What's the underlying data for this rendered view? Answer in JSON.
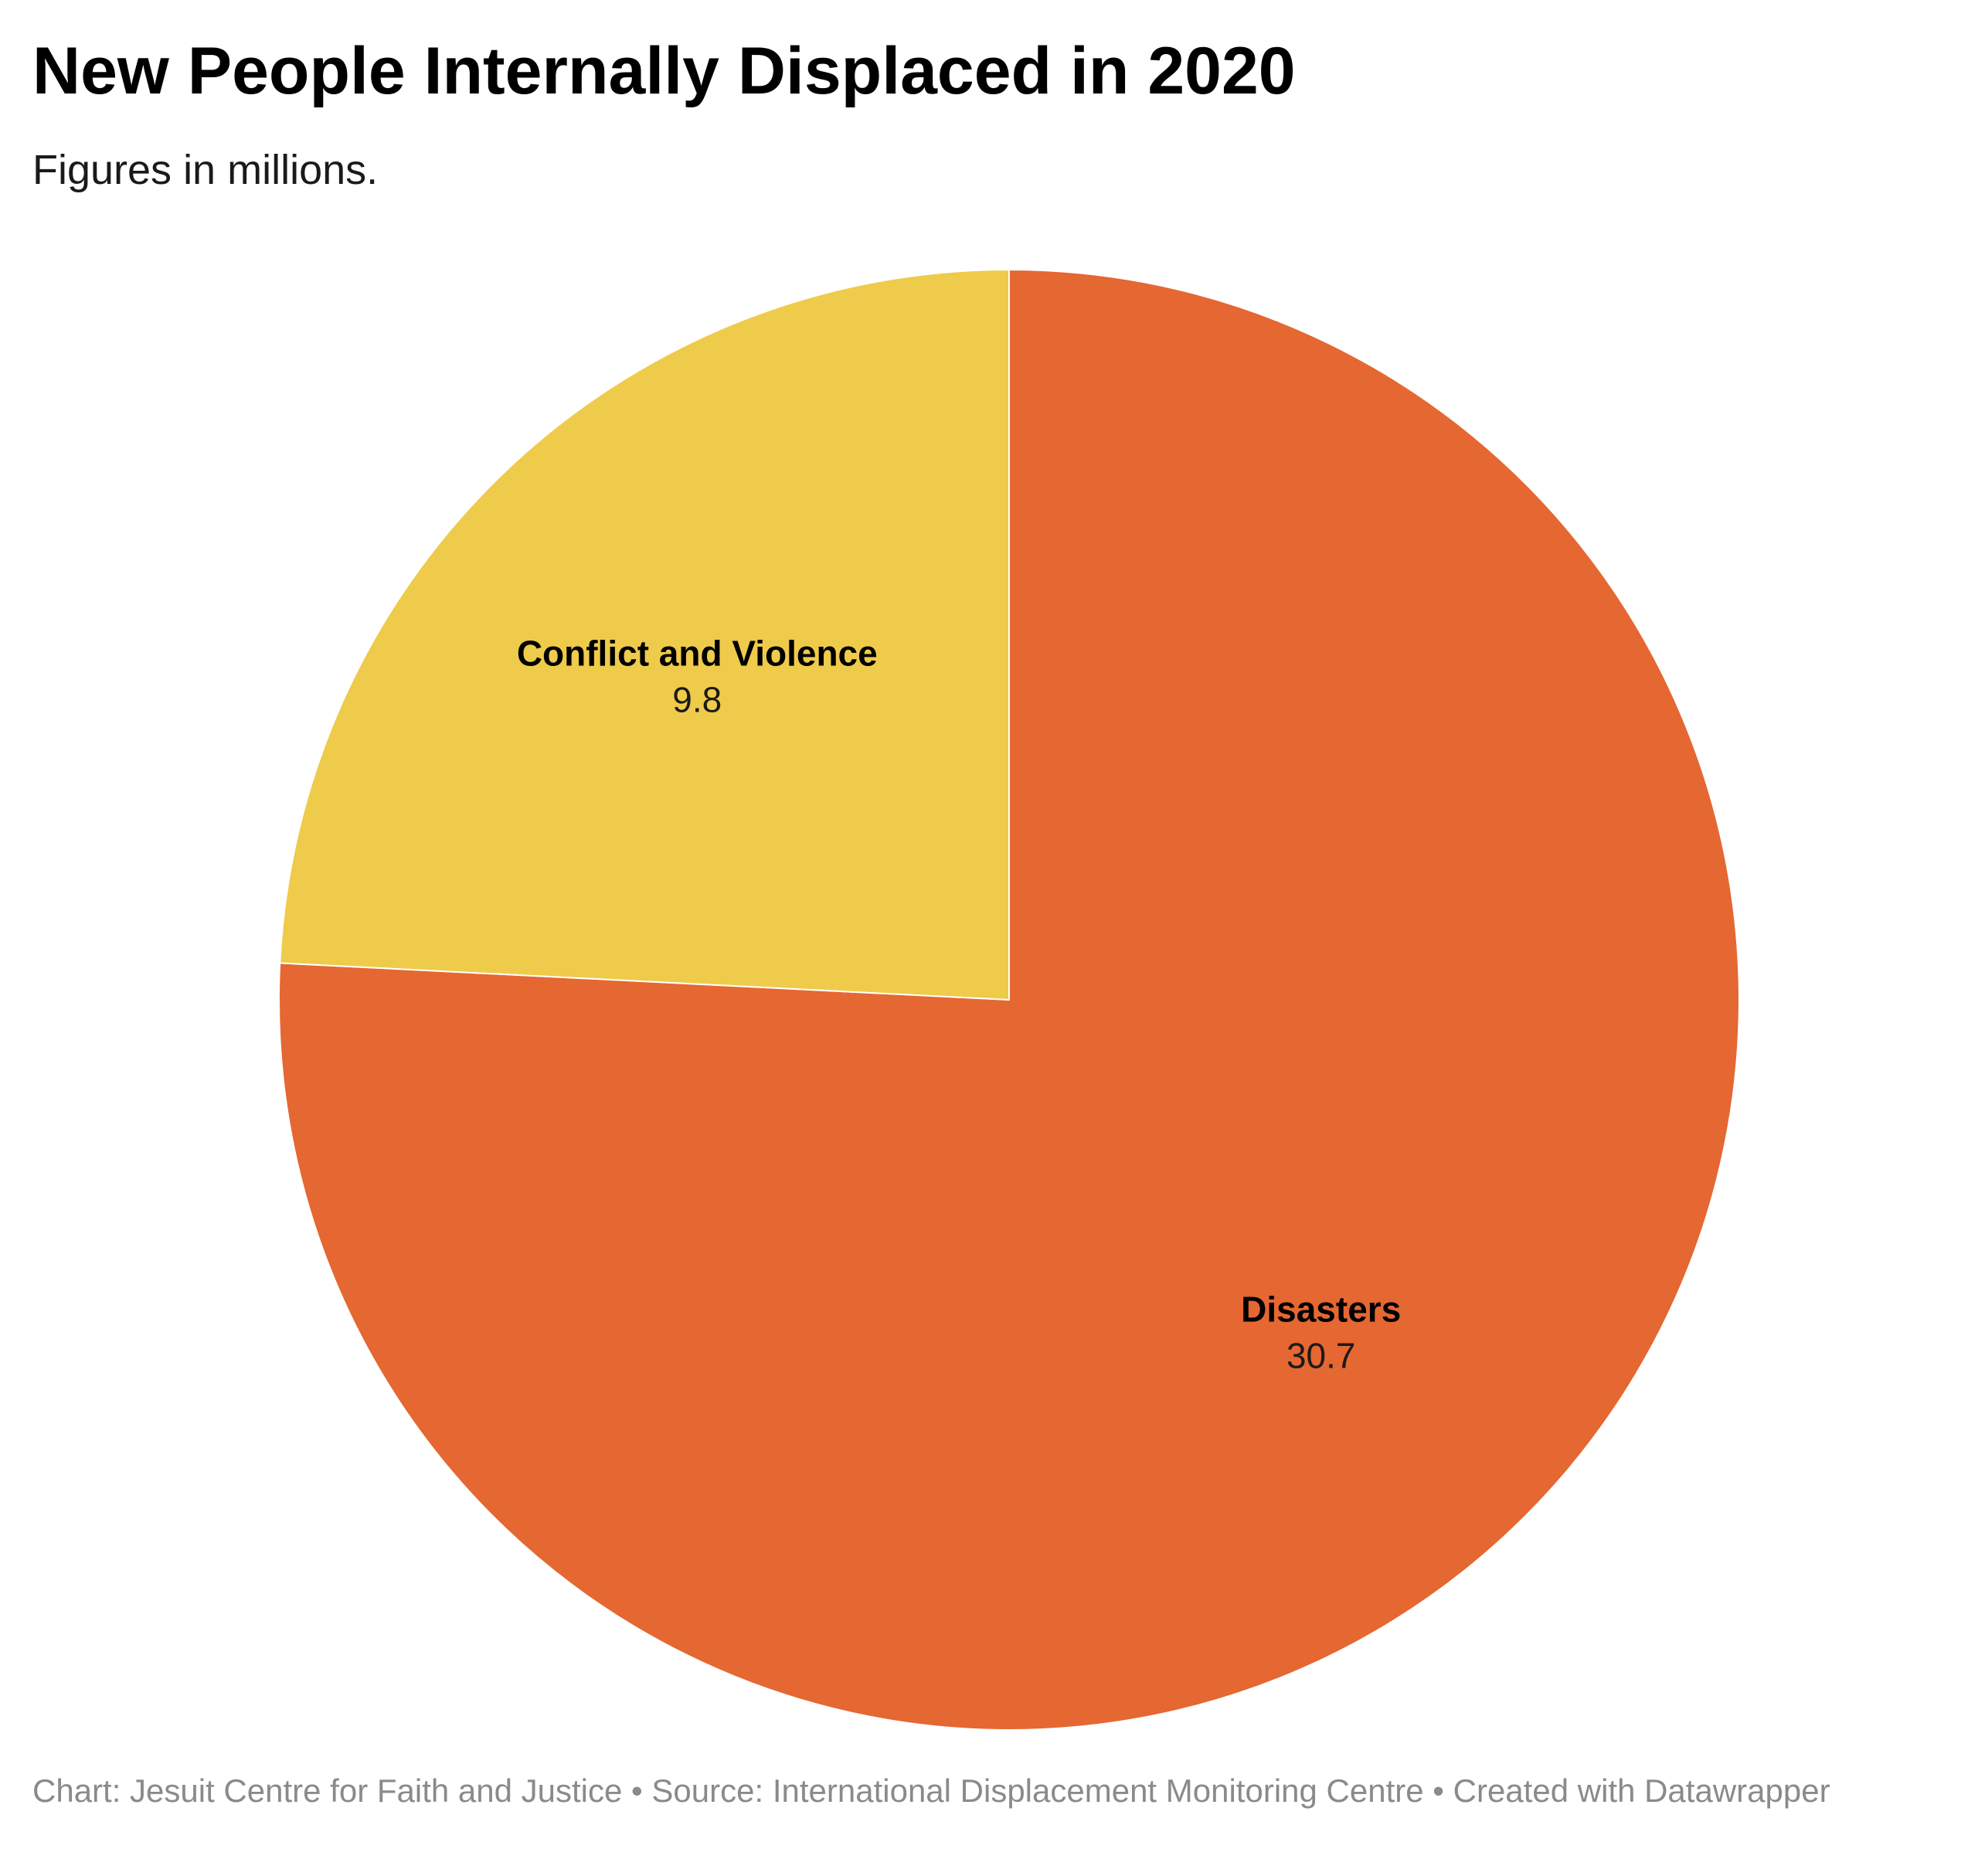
{
  "title": "New People Internally Displaced in 2020",
  "subtitle": "Figures in millions.",
  "footer": {
    "chart_prefix": "Chart: ",
    "chart_by": "Jesuit Centre for Faith and Justice",
    "separator": " • ",
    "source_prefix": "Source: ",
    "source": "International Displacement Monitoring Centre",
    "created_with": "Created with Datawrapper"
  },
  "colors": {
    "Disasters": "#e56731",
    "Conflict and Violence": "#efcb4b",
    "slice_border": "#ffffff"
  },
  "chart_data": {
    "type": "pie",
    "title": "New People Internally Displaced in 2020",
    "subtitle": "Figures in millions.",
    "slices": [
      {
        "label": "Disasters",
        "value": 30.7,
        "value_label": "30.7"
      },
      {
        "label": "Conflict and Violence",
        "value": 9.8,
        "value_label": "9.8"
      }
    ],
    "start_angle": "12 o'clock",
    "direction": "clockwise",
    "legend": "none (labels on slices)"
  }
}
